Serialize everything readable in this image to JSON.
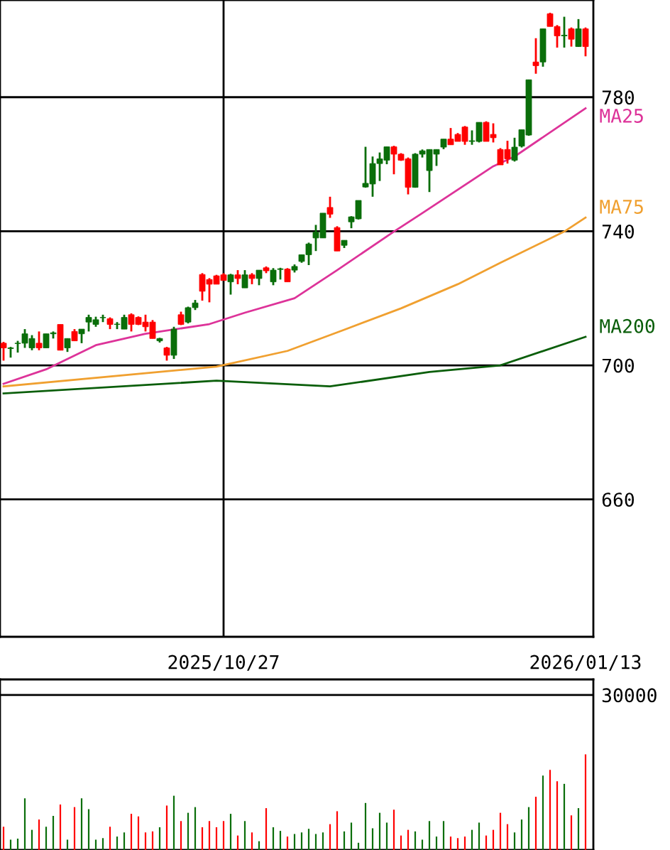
{
  "chart_data": [
    {
      "type": "candlestick",
      "ohlc": [
        [
          706.6,
          707,
          701.4,
          705.2
        ],
        [
          705,
          705.5,
          702.3,
          705.2
        ],
        [
          706.5,
          707.3,
          703.8,
          706.6
        ],
        [
          706.6,
          710.8,
          705.2,
          709.4
        ],
        [
          705.2,
          709,
          704.5,
          708
        ],
        [
          706.6,
          710.1,
          704.5,
          705.2
        ],
        [
          705.2,
          709.4,
          705.2,
          709.4
        ],
        [
          709.4,
          710.1,
          708,
          709.7
        ],
        [
          712.2,
          712.2,
          704.5,
          704.5
        ],
        [
          705.2,
          708,
          704,
          708
        ],
        [
          710.1,
          710.8,
          707.3,
          707.3
        ],
        [
          709.4,
          710.8,
          706.6,
          710.8
        ],
        [
          712.9,
          715.1,
          710.1,
          714.3
        ],
        [
          712.2,
          714.5,
          711.5,
          713.6
        ],
        [
          714.2,
          715.1,
          712.9,
          714.3
        ],
        [
          713.9,
          714.3,
          710.8,
          712.2
        ],
        [
          712.2,
          712.9,
          710.8,
          712.3
        ],
        [
          710.8,
          715.1,
          710.8,
          714.3
        ],
        [
          715.1,
          715.5,
          710.1,
          712.2
        ],
        [
          714.3,
          714.6,
          712,
          712.2
        ],
        [
          712.9,
          715.1,
          710.1,
          711.5
        ],
        [
          712.9,
          713.5,
          708,
          708
        ],
        [
          707.3,
          708.2,
          706.8,
          708
        ],
        [
          705.2,
          705.5,
          701.4,
          703
        ],
        [
          703,
          711.5,
          701.9,
          710.8
        ],
        [
          715.1,
          716,
          712,
          712.2
        ],
        [
          712.9,
          717.5,
          712.5,
          717.2
        ],
        [
          717.2,
          719.5,
          716.5,
          718.6
        ],
        [
          727.1,
          727.5,
          719.3,
          722.1
        ],
        [
          725.6,
          726,
          718.8,
          724.2
        ],
        [
          726.7,
          727,
          724.2,
          724.2
        ],
        [
          727,
          727.5,
          725.3,
          725.3
        ],
        [
          724.9,
          727.3,
          721.1,
          727
        ],
        [
          727,
          728.4,
          724.2,
          725.9
        ],
        [
          723.1,
          728.4,
          723.1,
          727
        ],
        [
          727,
          727.5,
          724.2,
          725.9
        ],
        [
          725.9,
          728.4,
          723.9,
          728.4
        ],
        [
          729.1,
          729.5,
          727.5,
          728.2
        ],
        [
          724.9,
          729,
          723.9,
          728.4
        ],
        [
          728.6,
          729.1,
          725.6,
          728.8
        ],
        [
          728.7,
          729,
          724.9,
          724.9
        ],
        [
          728.4,
          730.1,
          727.7,
          729.5
        ],
        [
          731,
          733,
          730.6,
          733
        ],
        [
          733,
          736.6,
          729.9,
          736.2
        ],
        [
          738,
          741.9,
          734.1,
          739.7
        ],
        [
          738,
          745.4,
          738,
          745.4
        ],
        [
          747.1,
          750.3,
          744,
          745.1
        ],
        [
          741.1,
          741.5,
          734.1,
          734.1
        ],
        [
          735.8,
          737.3,
          735,
          737.3
        ],
        [
          742.8,
          744.5,
          740.9,
          744.3
        ],
        [
          743.7,
          749.2,
          743.5,
          749.2
        ],
        [
          753.2,
          765.2,
          753,
          754.3
        ],
        [
          754.1,
          762.3,
          750.3,
          760.2
        ],
        [
          760.2,
          763.5,
          755,
          761.6
        ],
        [
          761.2,
          765.2,
          760,
          765.2
        ],
        [
          765.2,
          765.5,
          757,
          763
        ],
        [
          763,
          763.3,
          761,
          761.2
        ],
        [
          761.6,
          762,
          751,
          753.1
        ],
        [
          753.1,
          763.3,
          753,
          763
        ],
        [
          763,
          764.4,
          762,
          764
        ],
        [
          758.1,
          764.4,
          751.7,
          764.4
        ],
        [
          763,
          764.4,
          759.5,
          764.4
        ],
        [
          765.1,
          767.5,
          764.5,
          767.5
        ],
        [
          767.5,
          770.8,
          765.8,
          765.8
        ],
        [
          768.9,
          769.3,
          766.8,
          766.8
        ],
        [
          771.1,
          771.4,
          765.8,
          766.8
        ],
        [
          766.8,
          770.1,
          765.8,
          767
        ],
        [
          766.8,
          772.5,
          766.5,
          772.5
        ],
        [
          772.5,
          772.8,
          766.8,
          766.8
        ],
        [
          768.9,
          772.2,
          766.5,
          767.9
        ],
        [
          764.4,
          764.8,
          759.8,
          759.8
        ],
        [
          764.4,
          767,
          760.2,
          761.6
        ],
        [
          761.2,
          767.9,
          760.8,
          765.1
        ],
        [
          765.4,
          770.3,
          765,
          770.3
        ],
        [
          768.7,
          785.2,
          768.5,
          785.2
        ],
        [
          790.5,
          797.6,
          787,
          789.4
        ],
        [
          790.5,
          800.4,
          789.1,
          800.4
        ],
        [
          804.9,
          805.2,
          801.1,
          801.1
        ],
        [
          801.1,
          801.5,
          794.8,
          798.3
        ],
        [
          798.3,
          804,
          794.8,
          798.5
        ],
        [
          800.4,
          800.8,
          795.1,
          797.3
        ],
        [
          795.1,
          803.3,
          795,
          800.4
        ],
        [
          800.4,
          800.8,
          792.2,
          795.1
        ]
      ],
      "colors": [
        "#ff0000",
        "#0a6e0a",
        "#0a6e0a",
        "#0a6e0a",
        "#0a6e0a",
        "#ff0000",
        "#0a6e0a",
        "#0a6e0a",
        "#ff0000",
        "#0a6e0a",
        "#ff0000",
        "#0a6e0a",
        "#0a6e0a",
        "#0a6e0a",
        "#0a6e0a",
        "#ff0000",
        "#0a6e0a",
        "#0a6e0a",
        "#ff0000",
        "#ff0000",
        "#ff0000",
        "#ff0000",
        "#0a6e0a",
        "#ff0000",
        "#0a6e0a",
        "#ff0000",
        "#0a6e0a",
        "#0a6e0a",
        "#ff0000",
        "#ff0000",
        "#ff0000",
        "#ff0000",
        "#0a6e0a",
        "#ff0000",
        "#0a6e0a",
        "#ff0000",
        "#0a6e0a",
        "#ff0000",
        "#0a6e0a",
        "#0a6e0a",
        "#ff0000",
        "#0a6e0a",
        "#0a6e0a",
        "#0a6e0a",
        "#0a6e0a",
        "#0a6e0a",
        "#ff0000",
        "#ff0000",
        "#0a6e0a",
        "#0a6e0a",
        "#0a6e0a",
        "#0a6e0a",
        "#0a6e0a",
        "#0a6e0a",
        "#0a6e0a",
        "#ff0000",
        "#ff0000",
        "#ff0000",
        "#0a6e0a",
        "#0a6e0a",
        "#0a6e0a",
        "#0a6e0a",
        "#0a6e0a",
        "#ff0000",
        "#ff0000",
        "#ff0000",
        "#0a6e0a",
        "#0a6e0a",
        "#ff0000",
        "#ff0000",
        "#ff0000",
        "#ff0000",
        "#0a6e0a",
        "#0a6e0a",
        "#0a6e0a",
        "#ff0000",
        "#0a6e0a",
        "#ff0000",
        "#ff0000",
        "#0a6e0a",
        "#ff0000",
        "#0a6e0a",
        "#ff0000"
      ],
      "series": [
        {
          "type": "line",
          "name": "MA25",
          "color": "#dd3399",
          "values": [
            694.5,
            null,
            null,
            null,
            null,
            null,
            698.8,
            null,
            null,
            null,
            null,
            null,
            null,
            706.0,
            null,
            null,
            null,
            null,
            null,
            null,
            709.4,
            null,
            null,
            null,
            null,
            null,
            null,
            null,
            null,
            712.3,
            null,
            null,
            null,
            null,
            715.7,
            null,
            null,
            null,
            null,
            null,
            null,
            720.0,
            null,
            null,
            null,
            null,
            null,
            728.4,
            null,
            null,
            null,
            null,
            null,
            null,
            null,
            739.9,
            null,
            null,
            null,
            745.4,
            null,
            null,
            null,
            null,
            null,
            null,
            null,
            null,
            null,
            759.4,
            null,
            null,
            762.3,
            null,
            null,
            null,
            null,
            null,
            null,
            null,
            null,
            null,
            776.7
          ]
        },
        {
          "type": "line",
          "name": "MA75",
          "color": "#f0a030",
          "values": [
            693.7,
            null,
            null,
            null,
            null,
            null,
            null,
            null,
            null,
            null,
            null,
            null,
            null,
            null,
            null,
            null,
            null,
            null,
            null,
            null,
            null,
            null,
            null,
            null,
            null,
            null,
            null,
            null,
            null,
            null,
            699.6,
            null,
            null,
            null,
            null,
            null,
            null,
            null,
            null,
            null,
            704.3,
            null,
            null,
            null,
            null,
            null,
            null,
            null,
            710.6,
            null,
            null,
            null,
            null,
            null,
            null,
            null,
            717.0,
            null,
            null,
            null,
            null,
            null,
            null,
            null,
            724.2,
            null,
            null,
            null,
            null,
            null,
            730.6,
            null,
            null,
            null,
            null,
            null,
            null,
            null,
            null,
            739.9,
            null,
            null,
            744.1
          ]
        },
        {
          "type": "line",
          "name": "MA200",
          "color": "#0a5e0a",
          "values": [
            691.6,
            null,
            null,
            null,
            null,
            null,
            null,
            null,
            null,
            null,
            null,
            null,
            null,
            null,
            null,
            null,
            null,
            null,
            null,
            null,
            null,
            null,
            null,
            null,
            null,
            null,
            null,
            null,
            null,
            null,
            695.4,
            null,
            null,
            null,
            null,
            null,
            null,
            null,
            null,
            null,
            null,
            null,
            null,
            null,
            null,
            null,
            693.7,
            null,
            null,
            null,
            null,
            null,
            null,
            null,
            null,
            null,
            null,
            null,
            null,
            null,
            698.0,
            null,
            null,
            null,
            null,
            null,
            null,
            null,
            null,
            null,
            700.0,
            null,
            null,
            null,
            null,
            null,
            null,
            null,
            null,
            null,
            null,
            null,
            708.5
          ]
        }
      ],
      "categories": [
        null,
        null,
        null,
        null,
        null,
        null,
        null,
        null,
        null,
        null,
        null,
        null,
        null,
        null,
        null,
        null,
        null,
        null,
        null,
        null,
        null,
        null,
        null,
        null,
        null,
        null,
        null,
        null,
        null,
        null,
        null,
        "2025/10/27",
        null,
        null,
        null,
        null,
        null,
        null,
        null,
        null,
        null,
        null,
        null,
        null,
        null,
        null,
        null,
        null,
        null,
        null,
        null,
        null,
        null,
        null,
        null,
        null,
        null,
        null,
        null,
        null,
        null,
        null,
        null,
        null,
        null,
        null,
        null,
        null,
        null,
        null,
        null,
        null,
        null,
        null,
        null,
        null,
        null,
        null,
        null,
        null,
        null,
        null,
        "2026/01/13"
      ],
      "ylim": [
        619,
        809
      ],
      "yticks": [
        660,
        700,
        740,
        780
      ],
      "grid": true
    },
    {
      "type": "bar",
      "values": [
        4500,
        2000,
        2200,
        10000,
        3900,
        5900,
        4500,
        6600,
        8800,
        2000,
        8300,
        10000,
        7900,
        2000,
        2300,
        4500,
        2600,
        3400,
        7000,
        6500,
        3400,
        3600,
        4400,
        8600,
        10500,
        5600,
        7200,
        8300,
        4400,
        5600,
        4400,
        5600,
        7000,
        2800,
        5600,
        3400,
        1700,
        8100,
        4400,
        3700,
        2600,
        3100,
        3400,
        4100,
        3100,
        3400,
        5000,
        7500,
        3600,
        5300,
        1400,
        9100,
        4200,
        7200,
        5300,
        7800,
        2800,
        3900,
        3600,
        2000,
        5600,
        2600,
        5600,
        2600,
        2300,
        2600,
        3900,
        5300,
        2800,
        3900,
        7200,
        5000,
        3400,
        5900,
        8300,
        10300,
        14400,
        15500,
        13300,
        12800,
        6700,
        8100,
        18500
      ],
      "colors": [
        "#ff0000",
        "#0a6e0a",
        "#0a6e0a",
        "#0a6e0a",
        "#0a6e0a",
        "#ff0000",
        "#0a6e0a",
        "#0a6e0a",
        "#ff0000",
        "#0a6e0a",
        "#ff0000",
        "#0a6e0a",
        "#0a6e0a",
        "#0a6e0a",
        "#0a6e0a",
        "#ff0000",
        "#0a6e0a",
        "#0a6e0a",
        "#ff0000",
        "#ff0000",
        "#ff0000",
        "#ff0000",
        "#0a6e0a",
        "#ff0000",
        "#0a6e0a",
        "#ff0000",
        "#0a6e0a",
        "#0a6e0a",
        "#ff0000",
        "#ff0000",
        "#ff0000",
        "#ff0000",
        "#0a6e0a",
        "#ff0000",
        "#0a6e0a",
        "#ff0000",
        "#0a6e0a",
        "#ff0000",
        "#0a6e0a",
        "#0a6e0a",
        "#ff0000",
        "#0a6e0a",
        "#0a6e0a",
        "#0a6e0a",
        "#0a6e0a",
        "#0a6e0a",
        "#ff0000",
        "#ff0000",
        "#0a6e0a",
        "#0a6e0a",
        "#0a6e0a",
        "#0a6e0a",
        "#0a6e0a",
        "#0a6e0a",
        "#0a6e0a",
        "#ff0000",
        "#ff0000",
        "#ff0000",
        "#0a6e0a",
        "#0a6e0a",
        "#0a6e0a",
        "#0a6e0a",
        "#0a6e0a",
        "#ff0000",
        "#ff0000",
        "#ff0000",
        "#0a6e0a",
        "#0a6e0a",
        "#ff0000",
        "#ff0000",
        "#ff0000",
        "#ff0000",
        "#0a6e0a",
        "#0a6e0a",
        "#0a6e0a",
        "#ff0000",
        "#0a6e0a",
        "#ff0000",
        "#ff0000",
        "#0a6e0a",
        "#ff0000",
        "#0a6e0a",
        "#ff0000"
      ],
      "categories": [
        null,
        null,
        null,
        null,
        null,
        null,
        null,
        null,
        null,
        null,
        null,
        null,
        null,
        null,
        null,
        null,
        null,
        null,
        null,
        null,
        null,
        null,
        null,
        null,
        null,
        null,
        null,
        null,
        null,
        null,
        null,
        "2025/10/27",
        null,
        null,
        null,
        null,
        null,
        null,
        null,
        null,
        null,
        null,
        null,
        null,
        null,
        null,
        null,
        null,
        null,
        null,
        null,
        null,
        null,
        null,
        null,
        null,
        null,
        null,
        null,
        null,
        null,
        null,
        null,
        null,
        null,
        null,
        null,
        null,
        null,
        null,
        null,
        null,
        null,
        null,
        null,
        null,
        null,
        null,
        null,
        null,
        null,
        null,
        "2026/01/13"
      ],
      "ylim": [
        0,
        33000
      ],
      "yticks": [
        30000
      ],
      "grid": "y",
      "tick_labels": "y"
    }
  ]
}
